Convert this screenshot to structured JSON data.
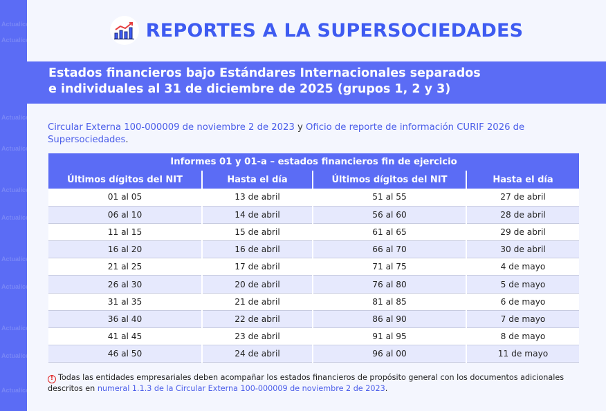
{
  "header": {
    "title": "REPORTES A LA SUPERSOCIEDADES",
    "logo_icon": "chart-growth-icon"
  },
  "banner": {
    "line1": "Estados financieros bajo Estándares Internacionales separados",
    "line2": "e individuales al 31 de diciembre de 2025 (grupos 1, 2 y 3)"
  },
  "intro": {
    "link1": "Circular Externa 100-000009 de noviembre 2 de 2023",
    "connector": " y ",
    "link2": "Oficio de reporte de información CURIF 2026 de Supersociedades",
    "end": "."
  },
  "table": {
    "caption": "Informes 01 y 01-a – estados financieros fin de ejercicio",
    "headers": [
      "Últimos dígitos del NIT",
      "Hasta el día",
      "Últimos dígitos del NIT",
      "Hasta el día"
    ],
    "rows": [
      [
        "01 al 05",
        "13 de abril",
        "51 al 55",
        "27 de abril"
      ],
      [
        "06 al 10",
        "14 de abril",
        "56 al 60",
        "28 de abril"
      ],
      [
        "11 al 15",
        "15 de abril",
        "61 al 65",
        "29 de abril"
      ],
      [
        "16 al 20",
        "16 de abril",
        "66 al 70",
        "30 de abril"
      ],
      [
        "21 al 25",
        "17 de abril",
        "71 al 75",
        "4 de mayo"
      ],
      [
        "26 al 30",
        "20 de abril",
        "76 al 80",
        "5 de mayo"
      ],
      [
        "31 al 35",
        "21 de abril",
        "81 al 85",
        "6 de mayo"
      ],
      [
        "36 al 40",
        "22 de abril",
        "86 al 90",
        "7 de mayo"
      ],
      [
        "41 al 45",
        "23 de abril",
        "91 al 95",
        "8 de mayo"
      ],
      [
        "46 al 50",
        "24 de abril",
        "96 al 00",
        "11 de mayo"
      ]
    ]
  },
  "note": {
    "icon": "alert-circle-icon",
    "icon_glyph": "!",
    "text": "Todas las entidades empresariales deben acompañar los estados financieros de propósito general con los documentos adicionales descritos en ",
    "link": "numeral 1.1.3 de la Circular Externa 100-000009 de noviembre 2 de 2023",
    "end": "."
  },
  "watermark": "Actualícese",
  "colors": {
    "accent": "#5b6cf5",
    "title": "#3e5bf1",
    "link": "#4a5de9",
    "alert": "#e02020"
  }
}
